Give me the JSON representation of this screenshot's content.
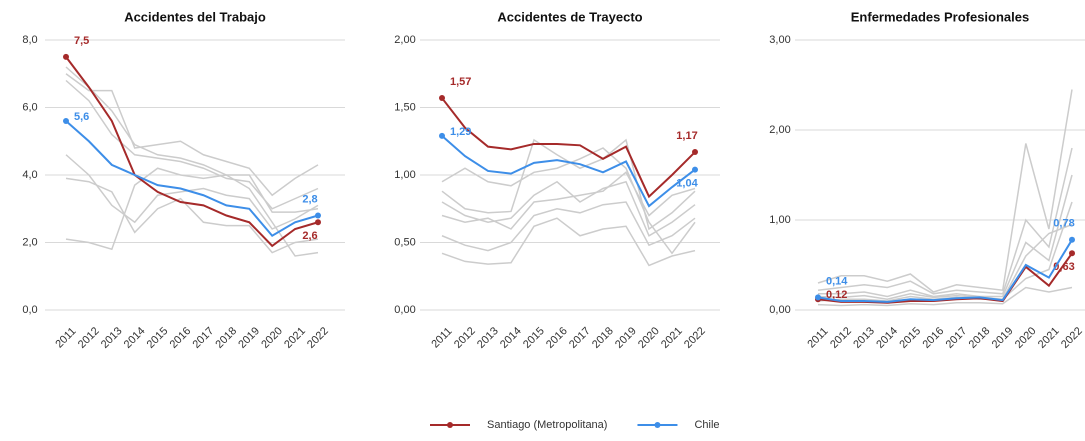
{
  "chart_data": [
    {
      "type": "line",
      "title": "Accidentes del Trabajo",
      "categories": [
        "2011",
        "2012",
        "2013",
        "2014",
        "2015",
        "2016",
        "2017",
        "2018",
        "2019",
        "2020",
        "2021",
        "2022"
      ],
      "ylim": [
        0,
        8
      ],
      "yticks": [
        {
          "value": 0,
          "label": "0,0"
        },
        {
          "value": 2,
          "label": "2,0"
        },
        {
          "value": 4,
          "label": "4,0"
        },
        {
          "value": 6,
          "label": "6,0"
        },
        {
          "value": 8,
          "label": "8,0"
        }
      ],
      "grid": true,
      "series": [
        {
          "color": "#cccccc",
          "values": [
            7.0,
            6.5,
            6.5,
            4.8,
            4.9,
            5.0,
            4.6,
            4.4,
            4.2,
            3.4,
            3.9,
            4.3
          ]
        },
        {
          "color": "#cccccc",
          "values": [
            6.8,
            6.2,
            5.2,
            4.6,
            4.5,
            4.4,
            4.2,
            3.9,
            3.8,
            3.0,
            3.3,
            3.6
          ]
        },
        {
          "color": "#cccccc",
          "values": [
            4.6,
            4.0,
            3.1,
            2.6,
            3.4,
            3.5,
            3.6,
            3.4,
            3.3,
            2.4,
            2.7,
            3.1
          ]
        },
        {
          "color": "#cccccc",
          "values": [
            3.9,
            3.8,
            3.5,
            2.3,
            3.0,
            3.3,
            2.6,
            2.5,
            2.5,
            1.7,
            2.0,
            2.1
          ]
        },
        {
          "color": "#cccccc",
          "values": [
            2.1,
            2.0,
            1.8,
            3.7,
            4.2,
            4.0,
            3.9,
            4.0,
            4.0,
            2.9,
            2.9,
            3.0
          ]
        },
        {
          "color": "#cccccc",
          "values": [
            7.2,
            6.6,
            5.9,
            4.9,
            4.6,
            4.5,
            4.3,
            4.0,
            3.6,
            2.6,
            1.6,
            1.7
          ]
        },
        {
          "name": "Santiago (Metropolitana)",
          "color": "#a52a2a",
          "values": [
            7.5,
            6.6,
            5.6,
            4.0,
            3.5,
            3.2,
            3.1,
            2.8,
            2.6,
            1.9,
            2.4,
            2.6
          ],
          "value_labels": [
            "7,5",
            null,
            null,
            null,
            null,
            null,
            null,
            null,
            null,
            null,
            null,
            "2,6"
          ]
        },
        {
          "name": "Chile",
          "color": "#3d8ee8",
          "values": [
            5.6,
            5.0,
            4.3,
            4.0,
            3.7,
            3.6,
            3.4,
            3.1,
            3.0,
            2.2,
            2.6,
            2.8
          ],
          "value_labels": [
            "5,6",
            null,
            null,
            null,
            null,
            null,
            null,
            null,
            null,
            null,
            null,
            "2,8"
          ]
        }
      ]
    },
    {
      "type": "line",
      "title": "Accidentes de Trayecto",
      "categories": [
        "2011",
        "2012",
        "2013",
        "2014",
        "2015",
        "2016",
        "2017",
        "2018",
        "2019",
        "2020",
        "2021",
        "2022"
      ],
      "ylim": [
        0,
        2
      ],
      "yticks": [
        {
          "value": 0,
          "label": "0,00"
        },
        {
          "value": 0.5,
          "label": "0,50"
        },
        {
          "value": 1,
          "label": "1,00"
        },
        {
          "value": 1.5,
          "label": "1,50"
        },
        {
          "value": 2,
          "label": "2,00"
        }
      ],
      "grid": true,
      "series": [
        {
          "color": "#cccccc",
          "values": [
            0.88,
            0.75,
            0.72,
            0.73,
            1.26,
            1.15,
            1.05,
            1.12,
            1.26,
            0.6,
            0.72,
            0.88
          ]
        },
        {
          "color": "#cccccc",
          "values": [
            0.8,
            0.7,
            0.65,
            0.68,
            0.85,
            0.95,
            0.8,
            0.9,
            0.95,
            0.55,
            0.65,
            0.78
          ]
        },
        {
          "color": "#cccccc",
          "values": [
            0.55,
            0.48,
            0.44,
            0.5,
            0.7,
            0.75,
            0.72,
            0.78,
            0.8,
            0.48,
            0.55,
            0.68
          ]
        },
        {
          "color": "#cccccc",
          "values": [
            0.42,
            0.36,
            0.34,
            0.35,
            0.62,
            0.68,
            0.55,
            0.6,
            0.62,
            0.33,
            0.4,
            0.44
          ]
        },
        {
          "color": "#cccccc",
          "values": [
            0.7,
            0.65,
            0.68,
            0.6,
            0.8,
            0.82,
            0.85,
            0.88,
            1.02,
            0.7,
            0.85,
            0.9
          ]
        },
        {
          "color": "#cccccc",
          "values": [
            0.95,
            1.05,
            0.95,
            0.92,
            1.02,
            1.05,
            1.12,
            1.2,
            1.05,
            0.65,
            0.42,
            0.65
          ]
        },
        {
          "name": "Santiago (Metropolitana)",
          "color": "#a52a2a",
          "values": [
            1.57,
            1.35,
            1.21,
            1.19,
            1.23,
            1.23,
            1.22,
            1.12,
            1.21,
            0.84,
            1.0,
            1.17
          ],
          "value_labels": [
            "1,57",
            null,
            null,
            null,
            null,
            null,
            null,
            null,
            null,
            null,
            null,
            "1,17"
          ]
        },
        {
          "name": "Chile",
          "color": "#3d8ee8",
          "values": [
            1.29,
            1.14,
            1.03,
            1.01,
            1.09,
            1.11,
            1.08,
            1.02,
            1.1,
            0.77,
            0.91,
            1.04
          ],
          "value_labels": [
            "1,29",
            null,
            null,
            null,
            null,
            null,
            null,
            null,
            null,
            null,
            null,
            "1,04"
          ]
        }
      ]
    },
    {
      "type": "line",
      "title": "Enfermedades Profesionales",
      "categories": [
        "2011",
        "2012",
        "2013",
        "2014",
        "2015",
        "2016",
        "2017",
        "2018",
        "2019",
        "2020",
        "2021",
        "2022"
      ],
      "ylim": [
        0,
        3
      ],
      "yticks": [
        {
          "value": 0,
          "label": "0,00"
        },
        {
          "value": 1,
          "label": "1,00"
        },
        {
          "value": 2,
          "label": "2,00"
        },
        {
          "value": 3,
          "label": "3,00"
        }
      ],
      "grid": true,
      "series": [
        {
          "color": "#cccccc",
          "values": [
            0.3,
            0.38,
            0.38,
            0.32,
            0.4,
            0.2,
            0.28,
            0.25,
            0.22,
            1.85,
            0.9,
            2.45
          ]
        },
        {
          "color": "#cccccc",
          "values": [
            0.22,
            0.25,
            0.28,
            0.25,
            0.32,
            0.18,
            0.22,
            0.2,
            0.18,
            1.0,
            0.7,
            1.8
          ]
        },
        {
          "color": "#cccccc",
          "values": [
            0.18,
            0.18,
            0.2,
            0.15,
            0.22,
            0.15,
            0.18,
            0.15,
            0.15,
            0.75,
            0.55,
            1.5
          ]
        },
        {
          "color": "#cccccc",
          "values": [
            0.1,
            0.12,
            0.12,
            0.1,
            0.15,
            0.12,
            0.14,
            0.12,
            0.12,
            0.35,
            0.45,
            1.2
          ]
        },
        {
          "color": "#cccccc",
          "values": [
            0.06,
            0.05,
            0.06,
            0.05,
            0.07,
            0.06,
            0.08,
            0.08,
            0.07,
            0.25,
            0.2,
            0.25
          ]
        },
        {
          "color": "#cccccc",
          "values": [
            0.15,
            0.14,
            0.16,
            0.12,
            0.18,
            0.14,
            0.16,
            0.14,
            0.12,
            0.6,
            0.85,
            0.95
          ]
        },
        {
          "name": "Santiago (Metropolitana)",
          "color": "#a52a2a",
          "values": [
            0.12,
            0.09,
            0.09,
            0.08,
            0.1,
            0.1,
            0.12,
            0.13,
            0.1,
            0.48,
            0.27,
            0.63
          ],
          "value_labels": [
            "0,12",
            null,
            null,
            null,
            null,
            null,
            null,
            null,
            null,
            null,
            null,
            "0,63"
          ]
        },
        {
          "name": "Chile",
          "color": "#3d8ee8",
          "values": [
            0.14,
            0.1,
            0.1,
            0.09,
            0.12,
            0.11,
            0.13,
            0.14,
            0.11,
            0.5,
            0.36,
            0.78
          ],
          "value_labels": [
            "0,14",
            null,
            null,
            null,
            null,
            null,
            null,
            null,
            null,
            null,
            null,
            "0,78"
          ]
        }
      ]
    }
  ]
}
